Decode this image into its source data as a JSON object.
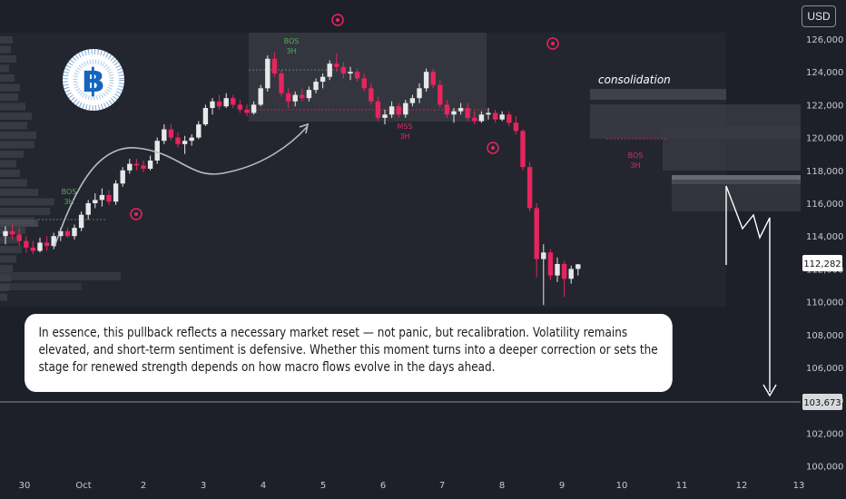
{
  "currency_button": "USD",
  "note": {
    "text": "In essence, this pullback reflects a necessary market reset — not panic, but recalibration. Volatility remains elevated, and short-term sentiment is defensive. Whether this moment turns into a deeper correction or sets the stage for renewed strength depends on how macro flows evolve in the days ahead."
  },
  "colors": {
    "background": "#1e2029",
    "up": "#e8e8ea",
    "down": "#e8245f",
    "bos_green": "#4caf50",
    "mss_red": "#e8245f",
    "logo_blue": "#1565c0"
  },
  "chart_data": {
    "type": "candlestick",
    "x_ticks": [
      "30",
      "Oct",
      "2",
      "3",
      "4",
      "5",
      "6",
      "7",
      "8",
      "9",
      "10",
      "11",
      "12",
      "13"
    ],
    "y_ticks": [
      "126,000",
      "124,000",
      "122,000",
      "120,000",
      "118,000",
      "116,000",
      "114,000",
      "112,000",
      "110,000",
      "108,000",
      "106,000",
      "104,000",
      "102,000",
      "100,000"
    ],
    "ylim": [
      99000,
      127000
    ],
    "last_price": "112,282",
    "target_price": "103,673",
    "annotations": {
      "bos_1": {
        "label": "BOS",
        "tf": "3H"
      },
      "bos_2": {
        "label": "BOS",
        "tf": "3H"
      },
      "bos_3": {
        "label": "BOS",
        "tf": "3H"
      },
      "mss": {
        "label": "MSS",
        "tf": "3H"
      },
      "consolidation": "consolidation"
    },
    "candles": [
      {
        "o": 114000,
        "h": 114600,
        "l": 113500,
        "c": 114300
      },
      {
        "o": 114300,
        "h": 114700,
        "l": 113800,
        "c": 114100
      },
      {
        "o": 114100,
        "h": 114500,
        "l": 113400,
        "c": 113700
      },
      {
        "o": 113700,
        "h": 114000,
        "l": 113000,
        "c": 113300
      },
      {
        "o": 113300,
        "h": 113700,
        "l": 112900,
        "c": 113100
      },
      {
        "o": 113100,
        "h": 113900,
        "l": 113000,
        "c": 113600
      },
      {
        "o": 113600,
        "h": 114000,
        "l": 113100,
        "c": 113400
      },
      {
        "o": 113400,
        "h": 114200,
        "l": 113200,
        "c": 114000
      },
      {
        "o": 114000,
        "h": 114500,
        "l": 113700,
        "c": 114300
      },
      {
        "o": 114300,
        "h": 114500,
        "l": 113900,
        "c": 114000
      },
      {
        "o": 114000,
        "h": 114700,
        "l": 113800,
        "c": 114500
      },
      {
        "o": 114500,
        "h": 115500,
        "l": 114300,
        "c": 115300
      },
      {
        "o": 115300,
        "h": 116200,
        "l": 115000,
        "c": 116000
      },
      {
        "o": 116000,
        "h": 116600,
        "l": 115700,
        "c": 116200
      },
      {
        "o": 116200,
        "h": 116900,
        "l": 115800,
        "c": 116500
      },
      {
        "o": 116500,
        "h": 116800,
        "l": 115900,
        "c": 116100
      },
      {
        "o": 116100,
        "h": 117400,
        "l": 115900,
        "c": 117200
      },
      {
        "o": 117200,
        "h": 118200,
        "l": 117000,
        "c": 118000
      },
      {
        "o": 118000,
        "h": 118700,
        "l": 117800,
        "c": 118400
      },
      {
        "o": 118400,
        "h": 118700,
        "l": 118000,
        "c": 118300
      },
      {
        "o": 118300,
        "h": 118600,
        "l": 117900,
        "c": 118100
      },
      {
        "o": 118100,
        "h": 118900,
        "l": 118000,
        "c": 118600
      },
      {
        "o": 118600,
        "h": 120000,
        "l": 118400,
        "c": 119800
      },
      {
        "o": 119800,
        "h": 120800,
        "l": 119600,
        "c": 120500
      },
      {
        "o": 120500,
        "h": 120800,
        "l": 119800,
        "c": 120000
      },
      {
        "o": 120000,
        "h": 120300,
        "l": 119400,
        "c": 119600
      },
      {
        "o": 119600,
        "h": 120100,
        "l": 119000,
        "c": 119800
      },
      {
        "o": 119800,
        "h": 120200,
        "l": 119500,
        "c": 120000
      },
      {
        "o": 120000,
        "h": 121000,
        "l": 119900,
        "c": 120800
      },
      {
        "o": 120800,
        "h": 122000,
        "l": 120700,
        "c": 121800
      },
      {
        "o": 121800,
        "h": 122400,
        "l": 121400,
        "c": 122200
      },
      {
        "o": 122200,
        "h": 122600,
        "l": 121700,
        "c": 121900
      },
      {
        "o": 121900,
        "h": 122700,
        "l": 121800,
        "c": 122400
      },
      {
        "o": 122400,
        "h": 122600,
        "l": 121800,
        "c": 122000
      },
      {
        "o": 122000,
        "h": 122300,
        "l": 121500,
        "c": 121700
      },
      {
        "o": 121700,
        "h": 122000,
        "l": 121300,
        "c": 121500
      },
      {
        "o": 121500,
        "h": 122200,
        "l": 121400,
        "c": 122000
      },
      {
        "o": 122000,
        "h": 123200,
        "l": 121900,
        "c": 123000
      },
      {
        "o": 123000,
        "h": 125000,
        "l": 122800,
        "c": 124800
      },
      {
        "o": 124800,
        "h": 125200,
        "l": 123700,
        "c": 123900
      },
      {
        "o": 123900,
        "h": 124100,
        "l": 122500,
        "c": 122700
      },
      {
        "o": 122700,
        "h": 123000,
        "l": 121800,
        "c": 122200
      },
      {
        "o": 122200,
        "h": 122800,
        "l": 121900,
        "c": 122600
      },
      {
        "o": 122600,
        "h": 123000,
        "l": 122200,
        "c": 122400
      },
      {
        "o": 122400,
        "h": 123100,
        "l": 122200,
        "c": 122900
      },
      {
        "o": 122900,
        "h": 123600,
        "l": 122700,
        "c": 123400
      },
      {
        "o": 123400,
        "h": 123900,
        "l": 123000,
        "c": 123700
      },
      {
        "o": 123700,
        "h": 124700,
        "l": 123500,
        "c": 124500
      },
      {
        "o": 124500,
        "h": 125100,
        "l": 124000,
        "c": 124300
      },
      {
        "o": 124300,
        "h": 124600,
        "l": 123600,
        "c": 123900
      },
      {
        "o": 123900,
        "h": 124300,
        "l": 123500,
        "c": 124000
      },
      {
        "o": 124000,
        "h": 124200,
        "l": 123400,
        "c": 123600
      },
      {
        "o": 123600,
        "h": 123900,
        "l": 122800,
        "c": 123000
      },
      {
        "o": 123000,
        "h": 123300,
        "l": 122000,
        "c": 122200
      },
      {
        "o": 122200,
        "h": 122500,
        "l": 121000,
        "c": 121200
      },
      {
        "o": 121200,
        "h": 121700,
        "l": 120800,
        "c": 121400
      },
      {
        "o": 121400,
        "h": 122200,
        "l": 121200,
        "c": 121900
      },
      {
        "o": 121900,
        "h": 122100,
        "l": 121200,
        "c": 121400
      },
      {
        "o": 121400,
        "h": 122300,
        "l": 121200,
        "c": 122100
      },
      {
        "o": 122100,
        "h": 122600,
        "l": 121900,
        "c": 122400
      },
      {
        "o": 122400,
        "h": 123300,
        "l": 122100,
        "c": 123000
      },
      {
        "o": 123000,
        "h": 124200,
        "l": 122800,
        "c": 124000
      },
      {
        "o": 124000,
        "h": 124200,
        "l": 123000,
        "c": 123200
      },
      {
        "o": 123200,
        "h": 123500,
        "l": 121800,
        "c": 122000
      },
      {
        "o": 122000,
        "h": 122300,
        "l": 121200,
        "c": 121400
      },
      {
        "o": 121400,
        "h": 121800,
        "l": 120900,
        "c": 121600
      },
      {
        "o": 121600,
        "h": 122100,
        "l": 121400,
        "c": 121800
      },
      {
        "o": 121800,
        "h": 122100,
        "l": 121000,
        "c": 121200
      },
      {
        "o": 121200,
        "h": 121600,
        "l": 120800,
        "c": 121000
      },
      {
        "o": 121000,
        "h": 121600,
        "l": 120900,
        "c": 121400
      },
      {
        "o": 121400,
        "h": 121800,
        "l": 121100,
        "c": 121500
      },
      {
        "o": 121500,
        "h": 121700,
        "l": 120900,
        "c": 121100
      },
      {
        "o": 121100,
        "h": 121600,
        "l": 121000,
        "c": 121400
      },
      {
        "o": 121400,
        "h": 121600,
        "l": 120700,
        "c": 120900
      },
      {
        "o": 120900,
        "h": 121300,
        "l": 120200,
        "c": 120400
      },
      {
        "o": 120400,
        "h": 120500,
        "l": 118000,
        "c": 118200
      },
      {
        "o": 118200,
        "h": 118500,
        "l": 115500,
        "c": 115700
      },
      {
        "o": 115700,
        "h": 116000,
        "l": 111500,
        "c": 112600
      },
      {
        "o": 112600,
        "h": 113500,
        "l": 109800,
        "c": 113000
      },
      {
        "o": 113000,
        "h": 113200,
        "l": 111300,
        "c": 111600
      },
      {
        "o": 111600,
        "h": 112700,
        "l": 111200,
        "c": 112300
      },
      {
        "o": 112300,
        "h": 112500,
        "l": 110300,
        "c": 111400
      },
      {
        "o": 111400,
        "h": 112200,
        "l": 111100,
        "c": 112000
      },
      {
        "o": 112000,
        "h": 112300,
        "l": 111600,
        "c": 112282
      }
    ]
  }
}
